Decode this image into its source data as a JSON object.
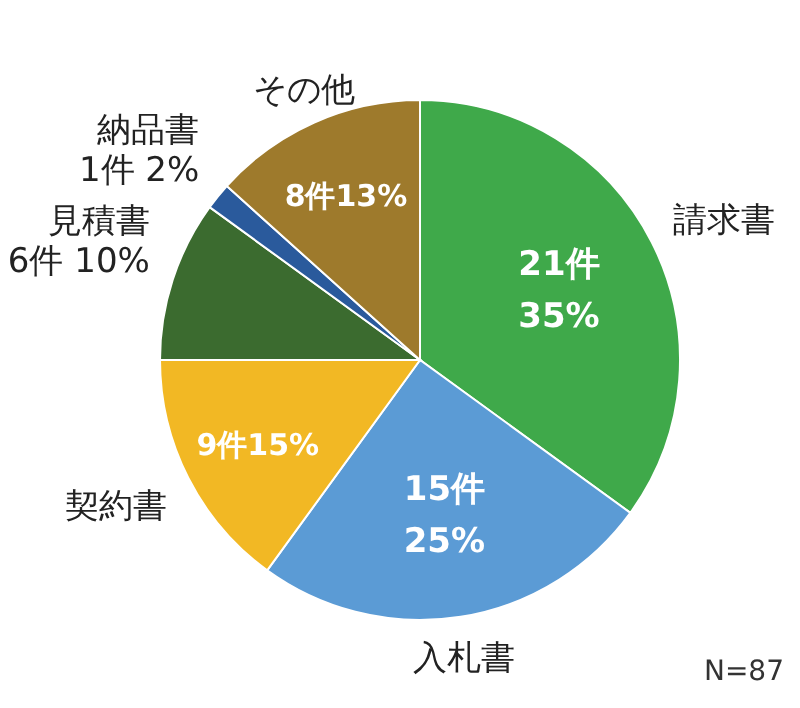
{
  "chart_data": {
    "type": "pie",
    "categories": [
      "請求書",
      "入札書",
      "契約書",
      "見積書",
      "納品書",
      "その他"
    ],
    "values": [
      21,
      15,
      9,
      6,
      1,
      8
    ],
    "colors": [
      "#3fa94a",
      "#5b9bd5",
      "#f2b824",
      "#3b6b2f",
      "#2a5a9c",
      "#9e7a2c"
    ],
    "value_labels": [
      "21件\n35%",
      "15件\n25%",
      "9件15%",
      "6件 10%",
      "1件 2%",
      "8件13%"
    ],
    "annotations": [
      "N=87"
    ]
  }
}
